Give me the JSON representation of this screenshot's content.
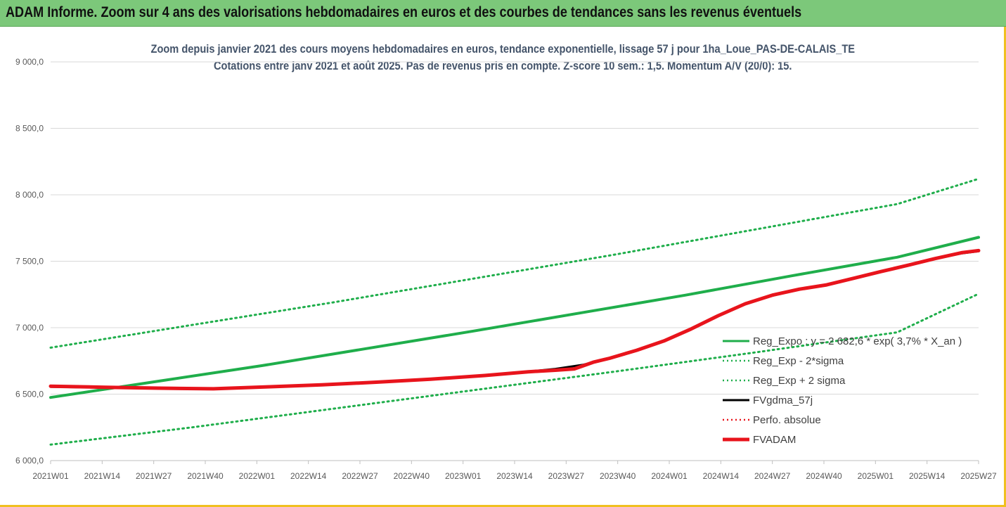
{
  "banner": {
    "title": "ADAM Informe. Zoom sur 4 ans des valorisations hebdomadaires en euros et des courbes de tendances sans les revenus éventuels",
    "background": "#7cc87a"
  },
  "chart_data": {
    "type": "line",
    "title_line1": "Zoom depuis janvier 2021 des cours moyens hebdomadaires en euros, tendance exponentielle, lissage 57 j pour 1ha_Loue_PAS-DE-CALAIS_TE",
    "title_line2": "Cotations entre janv 2021 et août 2025. Pas de revenus pris en compte. Z-score 10 sem.: 1,5. Momentum A/V (20/0): 15.",
    "ylim": [
      6000,
      9000
    ],
    "yticks": [
      "6 000,0",
      "6 500,0",
      "7 000,0",
      "7 500,0",
      "8 000,0",
      "8 500,0",
      "9 000,0"
    ],
    "ytick_values": [
      6000,
      6500,
      7000,
      7500,
      8000,
      8500,
      9000
    ],
    "xtick_labels": [
      "2021W01",
      "2021W14",
      "2021W27",
      "2021W40",
      "2022W01",
      "2022W14",
      "2022W27",
      "2022W40",
      "2023W01",
      "2023W14",
      "2023W27",
      "2023W40",
      "2024W01",
      "2024W14",
      "2024W27",
      "2024W40",
      "2025W01",
      "2025W14",
      "2025W27"
    ],
    "x_index_range": [
      0,
      243
    ],
    "grid": "horizontal",
    "legend_position": "right",
    "series": [
      {
        "name": "Reg_Expo : y = 2 682,6 * exp( 3,7% *  X_an )",
        "color": "#1fae4b",
        "style": "solid",
        "width": 4,
        "points": [
          [
            0,
            6475
          ],
          [
            39,
            6595
          ],
          [
            78,
            6715
          ],
          [
            117,
            6845
          ],
          [
            156,
            6975
          ],
          [
            195,
            7110
          ],
          [
            234,
            7245
          ],
          [
            273,
            7390
          ],
          [
            312,
            7530
          ],
          [
            342,
            7680
          ]
        ]
      },
      {
        "name": "Reg_Exp - 2*sigma",
        "color": "#1fae4b",
        "style": "dotted",
        "width": 3,
        "points": [
          [
            0,
            6120
          ],
          [
            52,
            6250
          ],
          [
            104,
            6390
          ],
          [
            156,
            6530
          ],
          [
            208,
            6670
          ],
          [
            260,
            6815
          ],
          [
            312,
            6965
          ],
          [
            342,
            7255
          ]
        ]
      },
      {
        "name": "Reg_Exp + 2 sigma",
        "color": "#1fae4b",
        "style": "dotted",
        "width": 3,
        "points": [
          [
            0,
            6850
          ],
          [
            52,
            7020
          ],
          [
            104,
            7190
          ],
          [
            156,
            7370
          ],
          [
            208,
            7550
          ],
          [
            260,
            7740
          ],
          [
            312,
            7930
          ],
          [
            342,
            8120
          ]
        ]
      },
      {
        "name": "FVgdma_57j",
        "color": "#000000",
        "style": "solid",
        "width": 3,
        "points": [
          [
            0,
            6555
          ],
          [
            20,
            6548
          ],
          [
            40,
            6545
          ],
          [
            60,
            6540
          ],
          [
            80,
            6555
          ],
          [
            100,
            6570
          ],
          [
            120,
            6590
          ],
          [
            140,
            6610
          ],
          [
            160,
            6640
          ],
          [
            176,
            6670
          ],
          [
            186,
            6690
          ],
          [
            196,
            6720
          ],
          [
            206,
            6770
          ],
          [
            216,
            6830
          ],
          [
            226,
            6900
          ],
          [
            236,
            6990
          ],
          [
            246,
            7090
          ],
          [
            256,
            7180
          ],
          [
            266,
            7240
          ],
          [
            276,
            7290
          ],
          [
            286,
            7320
          ],
          [
            296,
            7370
          ],
          [
            306,
            7420
          ],
          [
            316,
            7470
          ],
          [
            326,
            7520
          ],
          [
            336,
            7560
          ],
          [
            342,
            7575
          ]
        ]
      },
      {
        "name": "Perfo. absolue",
        "color": "#e8141c",
        "style": "dotted",
        "width": 2,
        "points": []
      },
      {
        "name": "FVADAM",
        "color": "#e8141c",
        "style": "solid",
        "width": 5,
        "points": [
          [
            0,
            6560
          ],
          [
            20,
            6552
          ],
          [
            40,
            6545
          ],
          [
            60,
            6540
          ],
          [
            80,
            6555
          ],
          [
            100,
            6570
          ],
          [
            120,
            6590
          ],
          [
            140,
            6612
          ],
          [
            160,
            6640
          ],
          [
            176,
            6668
          ],
          [
            186,
            6680
          ],
          [
            193,
            6690
          ],
          [
            200,
            6740
          ],
          [
            206,
            6770
          ],
          [
            216,
            6830
          ],
          [
            226,
            6900
          ],
          [
            236,
            6990
          ],
          [
            246,
            7090
          ],
          [
            256,
            7180
          ],
          [
            266,
            7245
          ],
          [
            276,
            7290
          ],
          [
            286,
            7322
          ],
          [
            296,
            7372
          ],
          [
            306,
            7422
          ],
          [
            316,
            7470
          ],
          [
            326,
            7520
          ],
          [
            336,
            7565
          ],
          [
            342,
            7580
          ]
        ]
      }
    ]
  }
}
